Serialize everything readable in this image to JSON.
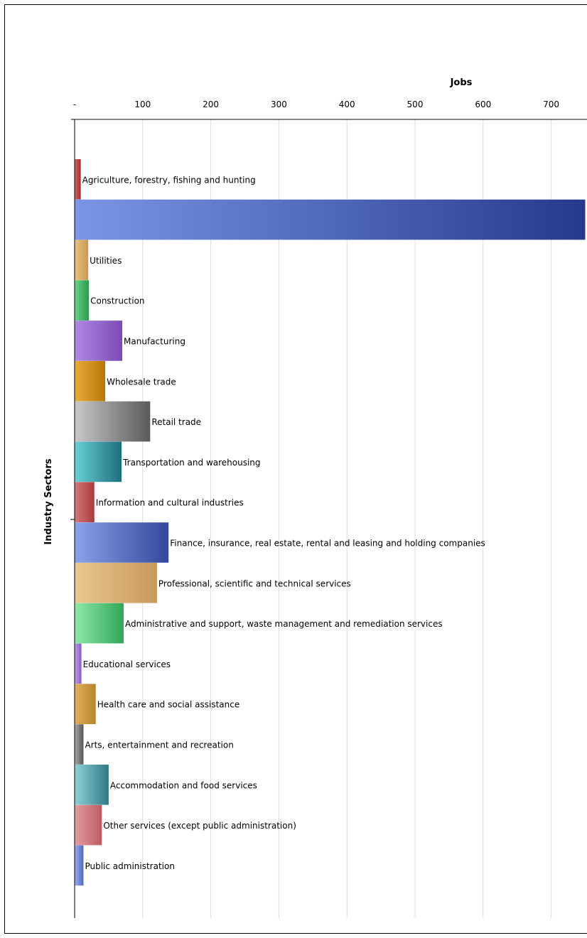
{
  "chart_data": {
    "type": "bar",
    "orientation": "horizontal",
    "title": "",
    "xlabel": "Jobs",
    "ylabel": "Industry Sectors",
    "xlim": [
      0,
      750
    ],
    "x_ticks": [
      {
        "value": 0,
        "label": "-"
      },
      {
        "value": 100,
        "label": "100"
      },
      {
        "value": 200,
        "label": "200"
      },
      {
        "value": 300,
        "label": "300"
      },
      {
        "value": 400,
        "label": "400"
      },
      {
        "value": 500,
        "label": "500"
      },
      {
        "value": 600,
        "label": "600"
      },
      {
        "value": 700,
        "label": "700"
      }
    ],
    "grid": true,
    "categories": [
      "Agriculture, forestry, fishing and hunting",
      "",
      "Utilities",
      "Construction",
      "Manufacturing",
      "Wholesale trade",
      "Retail trade",
      "Transportation and warehousing",
      "Information and cultural industries",
      "Finance, insurance, real estate, rental and leasing and holding companies",
      "Professional, scientific and technical services",
      "Administrative and support, waste management and remediation services",
      "Educational services",
      "Health care and social assistance",
      "Arts, entertainment and recreation",
      "Accommodation and food services",
      "Other services (except public administration)",
      "Public administration"
    ],
    "values": [
      9,
      750,
      20,
      21,
      70,
      45,
      111,
      69,
      29,
      138,
      121,
      72,
      10,
      31,
      13,
      50,
      40,
      13
    ],
    "colors": [
      [
        "#d46a6a",
        "#a82a2a"
      ],
      [
        "#7a96e6",
        "#263a8c"
      ],
      [
        "#e8c48a",
        "#c89850"
      ],
      [
        "#6ad48a",
        "#2a9a4a"
      ],
      [
        "#b08ae0",
        "#7a4ab8"
      ],
      [
        "#e8ac3a",
        "#b87808"
      ],
      [
        "#c8c8c8",
        "#5a5a5a"
      ],
      [
        "#6ad0d8",
        "#1e6e7e"
      ],
      [
        "#d47a7a",
        "#a83c3c"
      ],
      [
        "#8aa2e6",
        "#34489c"
      ],
      [
        "#e8c890",
        "#c8985a"
      ],
      [
        "#90e8a8",
        "#2ea85a"
      ],
      [
        "#c0a0e8",
        "#8a5ac8"
      ],
      [
        "#e0b060",
        "#b88428"
      ],
      [
        "#aaaaaa",
        "#555555"
      ],
      [
        "#90d0d8",
        "#2e7a86"
      ],
      [
        "#e0a0a0",
        "#c05a64"
      ],
      [
        "#a0b0ee",
        "#5068c0"
      ]
    ]
  }
}
